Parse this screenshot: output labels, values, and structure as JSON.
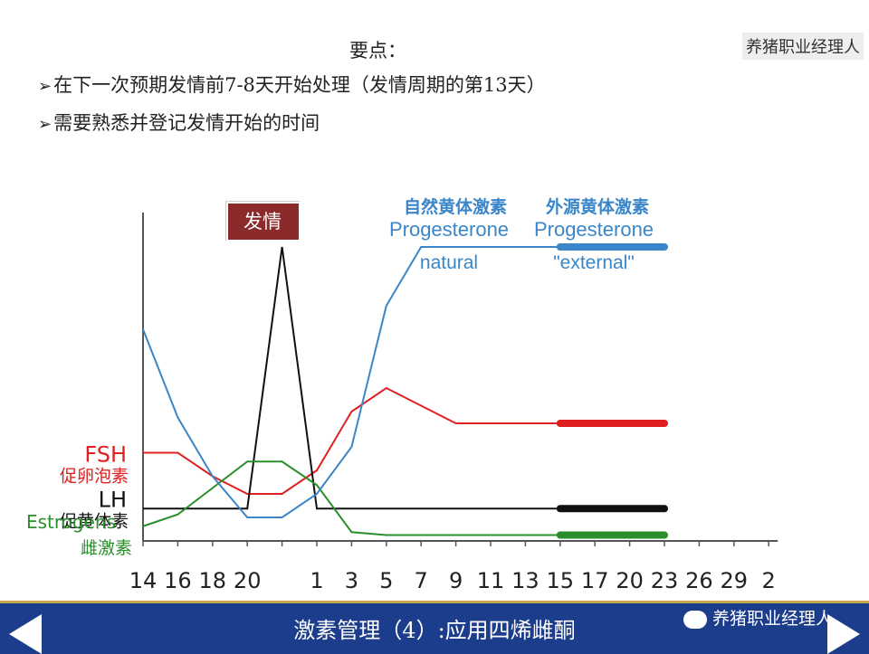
{
  "watermark": "养猪职业经理人",
  "notes": {
    "heading": "要点：",
    "bullets": [
      "在下一次预期发情前7-8天开始处理（发情周期的第13天）",
      "需要熟悉并登记发情开始的时间"
    ]
  },
  "footer": {
    "title": "激素管理（4）:应用四烯雌酮",
    "brand": "养猪职业经理人"
  },
  "colors": {
    "fsh": "#e02020",
    "lh": "#111111",
    "estrogens": "#2a8f2a",
    "progesterone": "#3a86c8",
    "footer_bg": "#1c3c8c",
    "estrus_box": "#8b2a2a"
  },
  "chart_data": {
    "type": "line",
    "x": [
      "14",
      "16",
      "18",
      "20",
      "",
      "1",
      "3",
      "5",
      "7",
      "9",
      "11",
      "13",
      "15",
      "17",
      "20",
      "23",
      "26",
      "29",
      "2"
    ],
    "estrus_label": "发情",
    "progesterone_labels": {
      "natural_cn": "自然黄体激素",
      "natural_en": "Progesterone",
      "natural_sub": "natural",
      "external_cn": "外源黄体激素",
      "external_en": "Progesterone",
      "external_sub": "\"external\""
    },
    "series": [
      {
        "name": "FSH",
        "cn": "促卵泡素",
        "values": [
          30,
          30,
          22,
          16,
          16,
          24,
          44,
          52,
          46,
          40,
          40,
          40,
          40,
          40,
          40,
          40,
          null,
          null,
          null
        ],
        "external_from": 12
      },
      {
        "name": "LH",
        "cn": "促黄体素",
        "values": [
          11,
          11,
          11,
          11,
          100,
          11,
          11,
          11,
          11,
          11,
          11,
          11,
          11,
          11,
          11,
          11,
          null,
          null,
          null
        ],
        "external_from": 12
      },
      {
        "name": "Estrogens",
        "cn": "雌激素",
        "values": [
          5,
          9,
          18,
          27,
          27,
          19,
          3,
          2,
          2,
          2,
          2,
          2,
          2,
          2,
          2,
          2,
          null,
          null,
          null
        ],
        "external_from": 12
      },
      {
        "name": "",
        "cn": "",
        "values": [
          72,
          42,
          22,
          8,
          8,
          16,
          32,
          80,
          100,
          100,
          100,
          100,
          100,
          100,
          100,
          100,
          null,
          null,
          null
        ],
        "external_from": 12
      }
    ]
  }
}
